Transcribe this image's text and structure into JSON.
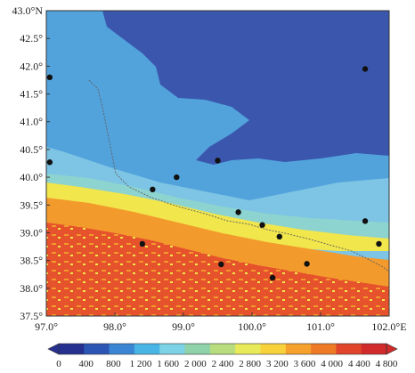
{
  "lat_ticks": [
    "43.0°N",
    "42.5°",
    "42.0°",
    "41.5°",
    "41.0°",
    "40.5°",
    "40.0°",
    "39.5°",
    "39.0°",
    "38.5°",
    "38.0°",
    "37.5°"
  ],
  "lon_ticks": [
    "97.0°",
    "98.0°",
    "99.0°",
    "100.0°",
    "101.0°",
    "102.0°E"
  ],
  "colorbar_labels": [
    "0",
    "400",
    "800",
    "1 200",
    "1 600",
    "2 000",
    "2 400",
    "2 800",
    "3 200",
    "3 600",
    "4 000",
    "4 400",
    "4 800"
  ],
  "colorbar_colors": [
    "#25308f",
    "#2c56b4",
    "#3a86d4",
    "#49b5e6",
    "#7dd3e6",
    "#8fd1a8",
    "#b8dd7e",
    "#e8ea5a",
    "#f8d23a",
    "#f6a12c",
    "#ee7a26",
    "#e0452b",
    "#d02a2a"
  ],
  "map_colors": {
    "deep": "#3b57ad",
    "mid": "#52a3dc",
    "light": "#7dc4e5",
    "teal": "#8dd3cf",
    "green": "#a9dc8a",
    "yellow": "#f1e64b",
    "orange": "#f39a2d",
    "red": "#e5522b",
    "border": "#606060"
  },
  "chart_data": {
    "type": "heatmap",
    "title": "",
    "xlabel": "",
    "ylabel": "",
    "xlim": [
      97.0,
      102.0
    ],
    "ylim": [
      37.5,
      43.0
    ],
    "colorbar": {
      "min": 0,
      "max": 4800,
      "step": 400,
      "extend": "both"
    },
    "stations": [
      {
        "lon": 97.05,
        "lat": 41.8
      },
      {
        "lon": 97.05,
        "lat": 40.27
      },
      {
        "lon": 98.55,
        "lat": 39.78
      },
      {
        "lon": 98.9,
        "lat": 40.0
      },
      {
        "lon": 99.5,
        "lat": 40.3
      },
      {
        "lon": 99.8,
        "lat": 39.37
      },
      {
        "lon": 100.15,
        "lat": 39.14
      },
      {
        "lon": 100.4,
        "lat": 38.93
      },
      {
        "lon": 98.4,
        "lat": 38.8
      },
      {
        "lon": 99.55,
        "lat": 38.43
      },
      {
        "lon": 100.3,
        "lat": 38.19
      },
      {
        "lon": 100.8,
        "lat": 38.44
      },
      {
        "lon": 101.65,
        "lat": 41.95
      },
      {
        "lon": 101.65,
        "lat": 39.21
      },
      {
        "lon": 101.85,
        "lat": 38.8
      }
    ]
  }
}
